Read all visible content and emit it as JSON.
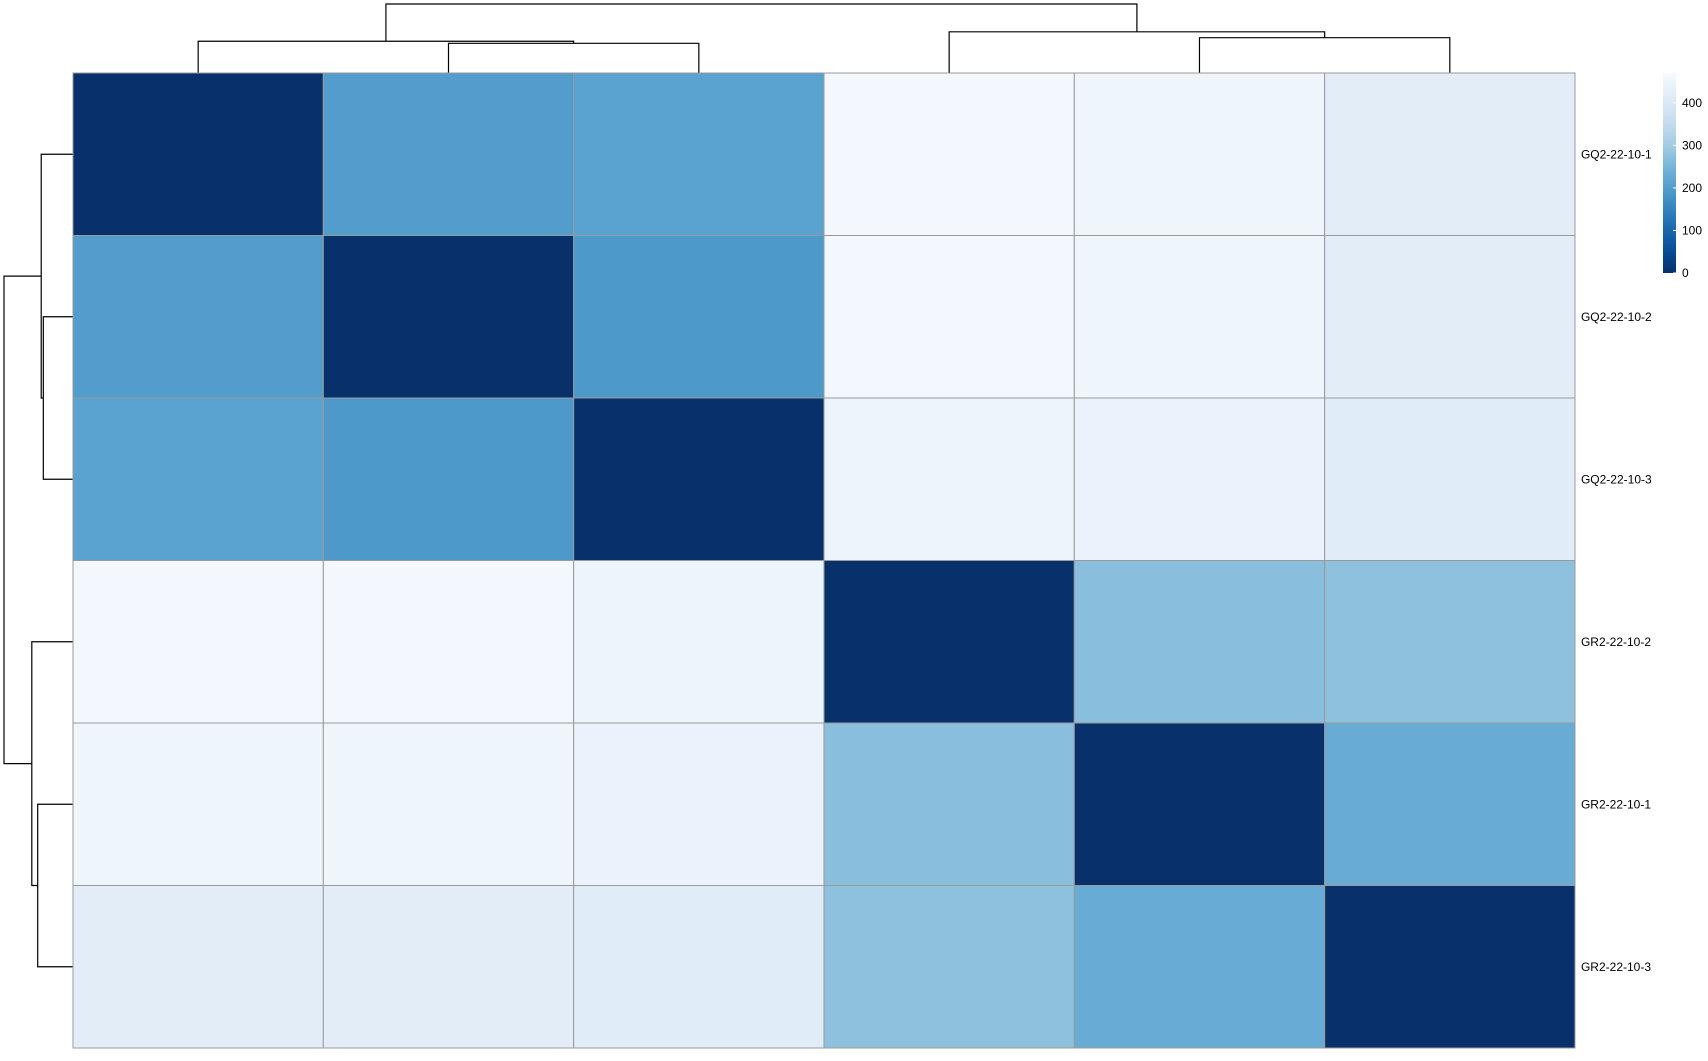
{
  "chart_data": {
    "type": "heatmap",
    "title": "",
    "xlabel": "",
    "ylabel": "",
    "row_labels": [
      "GQ2-22-10-1",
      "GQ2-22-10-2",
      "GQ2-22-10-3",
      "GR2-22-10-2",
      "GR2-22-10-1",
      "GR2-22-10-3"
    ],
    "col_labels": [],
    "values": [
      [
        0,
        200,
        210,
        460,
        450,
        420
      ],
      [
        200,
        0,
        190,
        460,
        450,
        420
      ],
      [
        210,
        190,
        0,
        445,
        440,
        415
      ],
      [
        460,
        460,
        445,
        0,
        270,
        275
      ],
      [
        450,
        450,
        440,
        270,
        0,
        230
      ],
      [
        420,
        420,
        415,
        275,
        230,
        0
      ]
    ],
    "colorbar": {
      "ticks": [
        0,
        100,
        200,
        300,
        400
      ],
      "range": [
        0,
        470
      ],
      "colors": [
        "#08306b",
        "#08519c",
        "#2171b5",
        "#4292c6",
        "#6baed6",
        "#9ecae1",
        "#c6dbef",
        "#deebf7",
        "#f7fbff"
      ]
    },
    "col_dendrogram": true,
    "row_dendrogram": true,
    "grid": true,
    "legend_position": "top-right"
  }
}
